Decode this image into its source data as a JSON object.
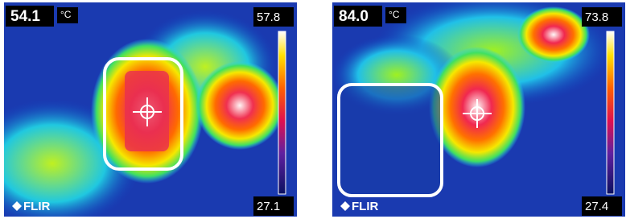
{
  "images": [
    {
      "spot_temp": "54.1",
      "unit": "°C",
      "scale_max": "57.8",
      "scale_min": "27.1",
      "brand": "FLIR"
    },
    {
      "spot_temp": "84.0",
      "unit": "°C",
      "scale_max": "73.8",
      "scale_min": "27.4",
      "brand": "FLIR"
    }
  ]
}
